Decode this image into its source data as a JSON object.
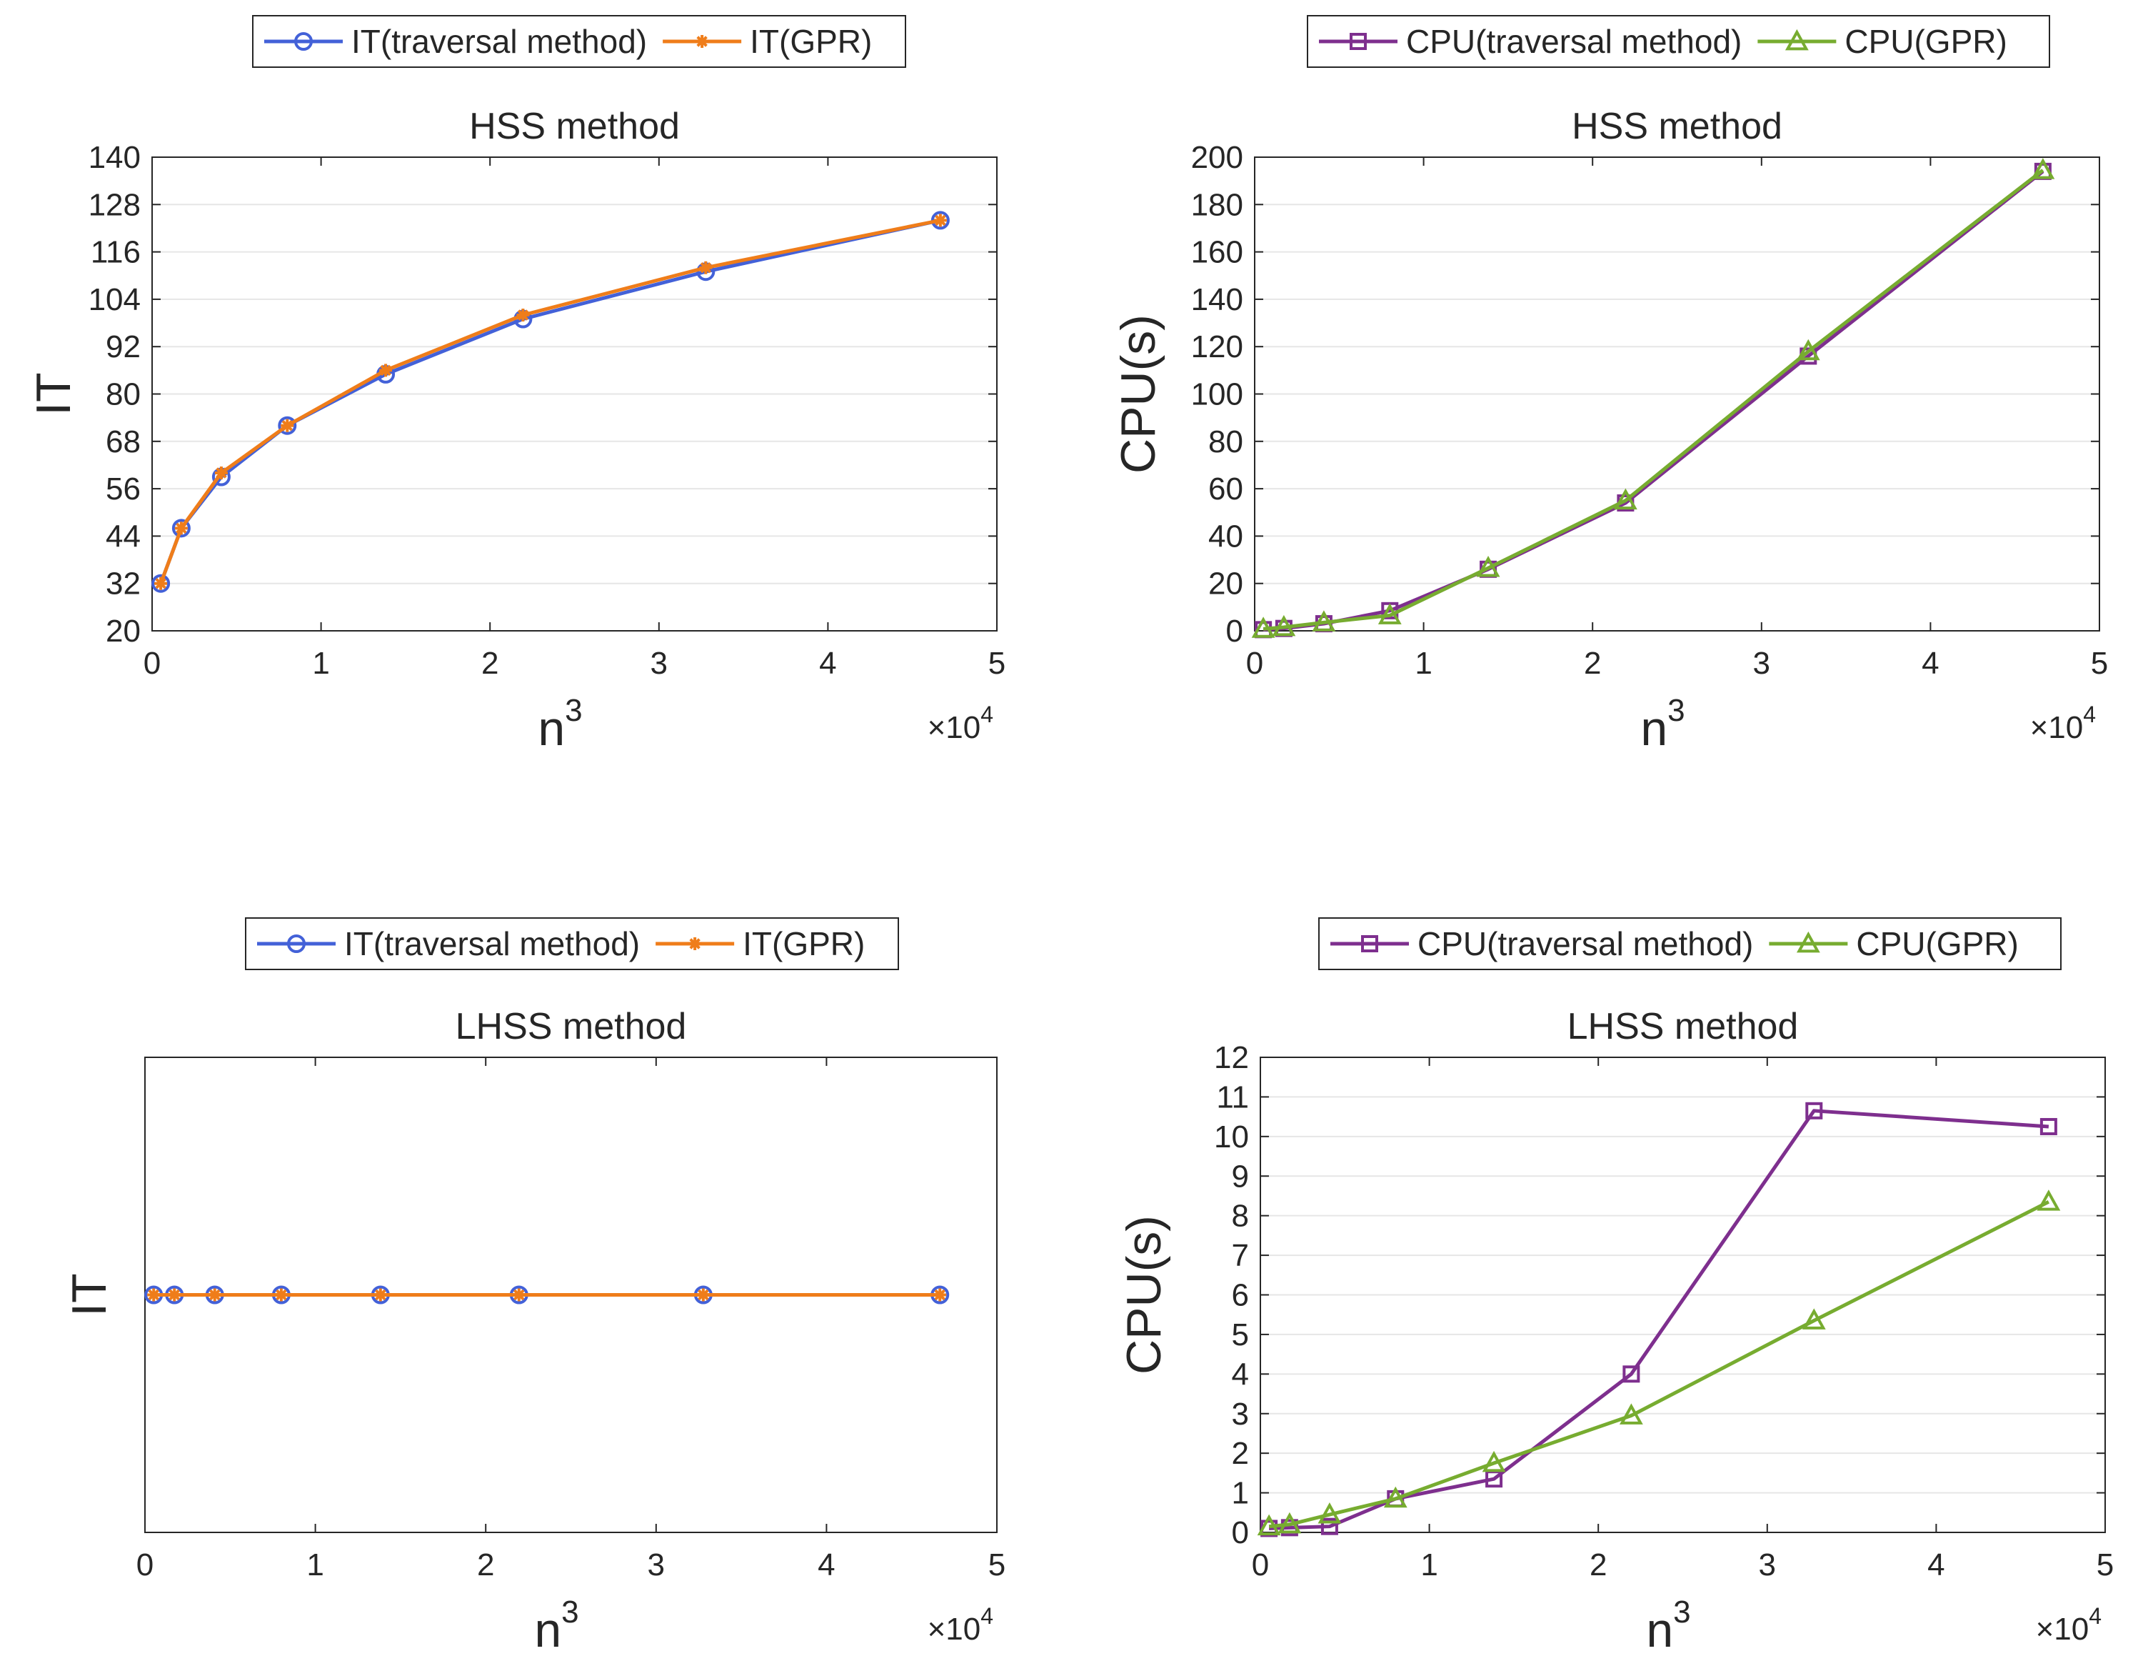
{
  "chart_data": [
    {
      "type": "line",
      "title": "HSS method",
      "xlabel": "n",
      "xlabel_superscript": "3",
      "ylabel": "IT",
      "x_exponent_label": "×10",
      "x_exponent_power": "4",
      "xlim": [
        0,
        5
      ],
      "ylim": [
        20,
        140
      ],
      "xticks": [
        0,
        1,
        2,
        3,
        4,
        5
      ],
      "xtick_labels": [
        "0",
        "1",
        "2",
        "3",
        "4",
        "5"
      ],
      "yticks": [
        20,
        32,
        44,
        56,
        68,
        80,
        92,
        104,
        116,
        128,
        140
      ],
      "ytick_labels": [
        "20",
        "32",
        "44",
        "56",
        "68",
        "80",
        "92",
        "104",
        "116",
        "128",
        "140"
      ],
      "grid": "horizontal",
      "legend_position": "top-outside",
      "series": [
        {
          "name": "IT(traversal method)",
          "color": "#4361d8",
          "marker": "circle",
          "x": [
            0.0512,
            0.1728,
            0.4096,
            0.8,
            1.3824,
            2.1952,
            3.2768,
            4.6656
          ],
          "y": [
            32,
            46,
            59,
            72,
            85,
            99,
            111,
            124
          ]
        },
        {
          "name": "IT(GPR)",
          "color": "#ef7d1a",
          "marker": "asterisk",
          "x": [
            0.0512,
            0.1728,
            0.4096,
            0.8,
            1.3824,
            2.1952,
            3.2768,
            4.6656
          ],
          "y": [
            32,
            46,
            60,
            72,
            86,
            100,
            112,
            124
          ]
        }
      ]
    },
    {
      "type": "line",
      "title": "HSS method",
      "xlabel": "n",
      "xlabel_superscript": "3",
      "ylabel": "CPU(s)",
      "x_exponent_label": "×10",
      "x_exponent_power": "4",
      "xlim": [
        0,
        5
      ],
      "ylim": [
        0,
        200
      ],
      "xticks": [
        0,
        1,
        2,
        3,
        4,
        5
      ],
      "xtick_labels": [
        "0",
        "1",
        "2",
        "3",
        "4",
        "5"
      ],
      "yticks": [
        0,
        20,
        40,
        60,
        80,
        100,
        120,
        140,
        160,
        180,
        200
      ],
      "ytick_labels": [
        "0",
        "20",
        "40",
        "60",
        "80",
        "100",
        "120",
        "140",
        "160",
        "180",
        "200"
      ],
      "grid": "horizontal",
      "legend_position": "top-outside",
      "series": [
        {
          "name": "CPU(traversal method)",
          "color": "#7e2f8e",
          "marker": "square",
          "x": [
            0.0512,
            0.1728,
            0.4096,
            0.8,
            1.3824,
            2.1952,
            3.2768,
            4.6656
          ],
          "y": [
            0.5,
            1.0,
            3.0,
            8.5,
            26,
            54,
            116,
            194
          ]
        },
        {
          "name": "CPU(GPR)",
          "color": "#77ac30",
          "marker": "triangle",
          "x": [
            0.0512,
            0.1728,
            0.4096,
            0.8,
            1.3824,
            2.1952,
            3.2768,
            4.6656
          ],
          "y": [
            0.8,
            1.5,
            3.5,
            6.5,
            26.5,
            55,
            118,
            194.5
          ]
        }
      ]
    },
    {
      "type": "line",
      "title": "LHSS method",
      "xlabel": "n",
      "xlabel_superscript": "3",
      "ylabel": "IT",
      "x_exponent_label": "×10",
      "x_exponent_power": "4",
      "xlim": [
        0,
        5
      ],
      "ylim": [
        0,
        2
      ],
      "xticks": [
        0,
        1,
        2,
        3,
        4,
        5
      ],
      "xtick_labels": [
        "0",
        "1",
        "2",
        "3",
        "4",
        "5"
      ],
      "yticks": [],
      "ytick_labels": [],
      "grid": "none",
      "legend_position": "top-outside",
      "series": [
        {
          "name": "IT(traversal method)",
          "color": "#4361d8",
          "marker": "circle",
          "x": [
            0.0512,
            0.1728,
            0.4096,
            0.8,
            1.3824,
            2.1952,
            3.2768,
            4.6656
          ],
          "y": [
            1,
            1,
            1,
            1,
            1,
            1,
            1,
            1
          ]
        },
        {
          "name": "IT(GPR)",
          "color": "#ef7d1a",
          "marker": "asterisk",
          "x": [
            0.0512,
            0.1728,
            0.4096,
            0.8,
            1.3824,
            2.1952,
            3.2768,
            4.6656
          ],
          "y": [
            1,
            1,
            1,
            1,
            1,
            1,
            1,
            1
          ]
        }
      ]
    },
    {
      "type": "line",
      "title": "LHSS method",
      "xlabel": "n",
      "xlabel_superscript": "3",
      "ylabel": "CPU(s)",
      "x_exponent_label": "×10",
      "x_exponent_power": "4",
      "xlim": [
        0,
        5
      ],
      "ylim": [
        0,
        12
      ],
      "xticks": [
        0,
        1,
        2,
        3,
        4,
        5
      ],
      "xtick_labels": [
        "0",
        "1",
        "2",
        "3",
        "4",
        "5"
      ],
      "yticks": [
        0,
        1,
        2,
        3,
        4,
        5,
        6,
        7,
        8,
        9,
        10,
        11,
        12
      ],
      "ytick_labels": [
        "0",
        "1",
        "2",
        "3",
        "4",
        "5",
        "6",
        "7",
        "8",
        "9",
        "10",
        "11",
        "12"
      ],
      "grid": "horizontal",
      "legend_position": "top-outside",
      "series": [
        {
          "name": "CPU(traversal method)",
          "color": "#7e2f8e",
          "marker": "square",
          "x": [
            0.0512,
            0.1728,
            0.4096,
            0.8,
            1.3824,
            2.1952,
            3.2768,
            4.6656
          ],
          "y": [
            0.1,
            0.12,
            0.15,
            0.85,
            1.35,
            4.0,
            10.65,
            10.25
          ]
        },
        {
          "name": "CPU(GPR)",
          "color": "#77ac30",
          "marker": "triangle",
          "x": [
            0.0512,
            0.1728,
            0.4096,
            0.8,
            1.3824,
            2.1952,
            3.2768,
            4.6656
          ],
          "y": [
            0.15,
            0.2,
            0.45,
            0.85,
            1.75,
            2.95,
            5.35,
            8.35
          ]
        }
      ]
    }
  ]
}
